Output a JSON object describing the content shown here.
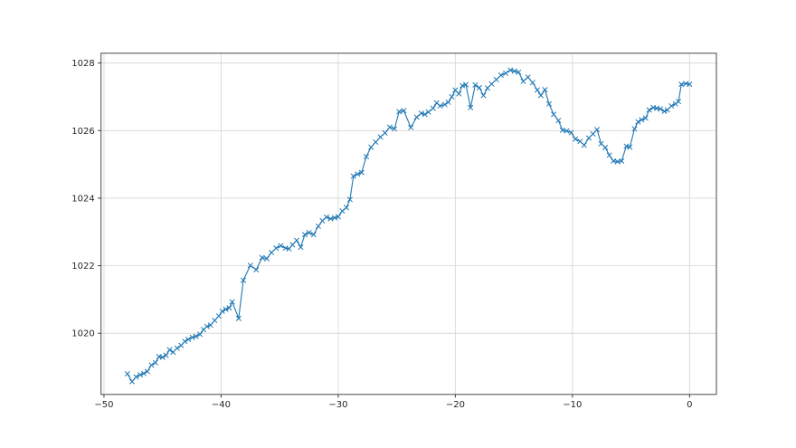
{
  "figure": {
    "background": "#ffffff",
    "title": ""
  },
  "chart_data": {
    "type": "line",
    "title": "",
    "xlabel": "",
    "ylabel": "",
    "xlim": [
      -50.25,
      2.29
    ],
    "ylim": [
      1018.19,
      1028.29
    ],
    "x_ticks": [
      -50,
      -40,
      -30,
      -20,
      -10,
      0
    ],
    "x_tick_labels": [
      "−50",
      "−40",
      "−30",
      "−20",
      "−10",
      "0"
    ],
    "y_ticks": [
      1020,
      1022,
      1024,
      1026,
      1028
    ],
    "y_tick_labels": [
      "1020",
      "1022",
      "1024",
      "1026",
      "1028"
    ],
    "grid": true,
    "grid_color": "#d9d9d9",
    "spine_color": "#4a4a4a",
    "tick_color": "#3a3a3a",
    "label_color": "#262626",
    "legend": null,
    "series": [
      {
        "name": "series-1",
        "color": "#1f77b4",
        "marker": "x",
        "line_width": 1.1,
        "points": [
          [
            -48.0,
            1018.8
          ],
          [
            -47.6,
            1018.57
          ],
          [
            -47.25,
            1018.71
          ],
          [
            -46.9,
            1018.77
          ],
          [
            -46.6,
            1018.81
          ],
          [
            -46.3,
            1018.87
          ],
          [
            -45.95,
            1019.06
          ],
          [
            -45.6,
            1019.13
          ],
          [
            -45.3,
            1019.31
          ],
          [
            -45.0,
            1019.29
          ],
          [
            -44.7,
            1019.35
          ],
          [
            -44.4,
            1019.51
          ],
          [
            -44.1,
            1019.44
          ],
          [
            -43.75,
            1019.56
          ],
          [
            -43.4,
            1019.64
          ],
          [
            -43.1,
            1019.76
          ],
          [
            -42.8,
            1019.82
          ],
          [
            -42.45,
            1019.88
          ],
          [
            -42.15,
            1019.91
          ],
          [
            -41.8,
            1019.97
          ],
          [
            -41.5,
            1020.11
          ],
          [
            -41.2,
            1020.2
          ],
          [
            -40.9,
            1020.24
          ],
          [
            -40.55,
            1020.38
          ],
          [
            -40.2,
            1020.51
          ],
          [
            -39.9,
            1020.65
          ],
          [
            -39.6,
            1020.71
          ],
          [
            -39.3,
            1020.75
          ],
          [
            -39.05,
            1020.93
          ],
          [
            -38.5,
            1020.44
          ],
          [
            -38.1,
            1021.57
          ],
          [
            -37.5,
            1022.01
          ],
          [
            -37.0,
            1021.88
          ],
          [
            -36.5,
            1022.24
          ],
          [
            -36.1,
            1022.21
          ],
          [
            -35.7,
            1022.39
          ],
          [
            -35.3,
            1022.52
          ],
          [
            -34.9,
            1022.59
          ],
          [
            -34.5,
            1022.52
          ],
          [
            -34.2,
            1022.5
          ],
          [
            -33.9,
            1022.62
          ],
          [
            -33.55,
            1022.75
          ],
          [
            -33.2,
            1022.55
          ],
          [
            -32.85,
            1022.92
          ],
          [
            -32.5,
            1022.98
          ],
          [
            -32.1,
            1022.92
          ],
          [
            -31.7,
            1023.17
          ],
          [
            -31.35,
            1023.33
          ],
          [
            -31.0,
            1023.44
          ],
          [
            -30.65,
            1023.39
          ],
          [
            -30.3,
            1023.42
          ],
          [
            -30.0,
            1023.45
          ],
          [
            -29.65,
            1023.62
          ],
          [
            -29.3,
            1023.72
          ],
          [
            -29.0,
            1023.96
          ],
          [
            -28.7,
            1024.65
          ],
          [
            -28.35,
            1024.71
          ],
          [
            -28.0,
            1024.76
          ],
          [
            -27.6,
            1025.23
          ],
          [
            -27.2,
            1025.51
          ],
          [
            -26.8,
            1025.66
          ],
          [
            -26.4,
            1025.81
          ],
          [
            -26.0,
            1025.93
          ],
          [
            -25.6,
            1026.1
          ],
          [
            -25.2,
            1026.05
          ],
          [
            -24.8,
            1026.56
          ],
          [
            -24.4,
            1026.59
          ],
          [
            -23.8,
            1026.09
          ],
          [
            -23.3,
            1026.4
          ],
          [
            -22.9,
            1026.51
          ],
          [
            -22.6,
            1026.48
          ],
          [
            -22.3,
            1026.55
          ],
          [
            -21.9,
            1026.66
          ],
          [
            -21.6,
            1026.82
          ],
          [
            -21.3,
            1026.73
          ],
          [
            -20.9,
            1026.77
          ],
          [
            -20.6,
            1026.84
          ],
          [
            -20.3,
            1027.0
          ],
          [
            -20.0,
            1027.2
          ],
          [
            -19.7,
            1027.09
          ],
          [
            -19.4,
            1027.33
          ],
          [
            -19.1,
            1027.36
          ],
          [
            -18.7,
            1026.68
          ],
          [
            -18.3,
            1027.35
          ],
          [
            -17.95,
            1027.27
          ],
          [
            -17.6,
            1027.04
          ],
          [
            -17.25,
            1027.26
          ],
          [
            -16.9,
            1027.38
          ],
          [
            -16.5,
            1027.51
          ],
          [
            -16.1,
            1027.64
          ],
          [
            -15.7,
            1027.7
          ],
          [
            -15.3,
            1027.79
          ],
          [
            -14.95,
            1027.76
          ],
          [
            -14.6,
            1027.73
          ],
          [
            -14.2,
            1027.46
          ],
          [
            -13.8,
            1027.58
          ],
          [
            -13.4,
            1027.42
          ],
          [
            -13.0,
            1027.2
          ],
          [
            -12.7,
            1027.04
          ],
          [
            -12.35,
            1027.21
          ],
          [
            -12.0,
            1026.79
          ],
          [
            -11.6,
            1026.48
          ],
          [
            -11.2,
            1026.3
          ],
          [
            -10.85,
            1026.01
          ],
          [
            -10.5,
            1025.99
          ],
          [
            -10.1,
            1025.94
          ],
          [
            -9.75,
            1025.75
          ],
          [
            -9.35,
            1025.68
          ],
          [
            -9.0,
            1025.57
          ],
          [
            -8.6,
            1025.78
          ],
          [
            -8.25,
            1025.9
          ],
          [
            -7.9,
            1026.03
          ],
          [
            -7.55,
            1025.61
          ],
          [
            -7.2,
            1025.5
          ],
          [
            -6.85,
            1025.27
          ],
          [
            -6.5,
            1025.1
          ],
          [
            -6.15,
            1025.08
          ],
          [
            -5.8,
            1025.1
          ],
          [
            -5.4,
            1025.54
          ],
          [
            -5.1,
            1025.51
          ],
          [
            -4.7,
            1026.05
          ],
          [
            -4.4,
            1026.26
          ],
          [
            -4.1,
            1026.32
          ],
          [
            -3.75,
            1026.37
          ],
          [
            -3.45,
            1026.61
          ],
          [
            -3.1,
            1026.68
          ],
          [
            -2.8,
            1026.66
          ],
          [
            -2.5,
            1026.64
          ],
          [
            -2.15,
            1026.57
          ],
          [
            -1.9,
            1026.61
          ],
          [
            -1.55,
            1026.73
          ],
          [
            -1.2,
            1026.79
          ],
          [
            -0.95,
            1026.86
          ],
          [
            -0.7,
            1027.37
          ],
          [
            -0.3,
            1027.39
          ],
          [
            0.0,
            1027.37
          ]
        ]
      }
    ]
  }
}
